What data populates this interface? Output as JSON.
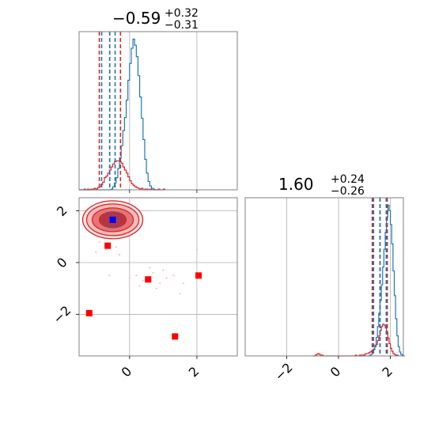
{
  "chart_data": [
    {
      "type": "histogram",
      "panel": "top-left marginal",
      "title_value": "−0.59",
      "title_plus": "+0.32",
      "title_minus": "−0.31",
      "xlim": [
        -1.5,
        3.2
      ],
      "grid": true,
      "series": [
        {
          "color": "#1f77b4",
          "bin_start": -1.5,
          "bin_width": 0.05,
          "counts": [
            0,
            0,
            0,
            0,
            0,
            0,
            0,
            0,
            0,
            0,
            0,
            0,
            0,
            0,
            0,
            0,
            0,
            0,
            0,
            1,
            4,
            9,
            16,
            28,
            42,
            58,
            78,
            95,
            118,
            144,
            166,
            186,
            198,
            190,
            175,
            150,
            122,
            94,
            66,
            40,
            22,
            11,
            5,
            2,
            1,
            0,
            0
          ]
        },
        {
          "color": "#d62728",
          "bin_start": -1.5,
          "bin_width": 0.05,
          "counts": [
            0,
            0,
            0,
            1,
            0,
            1,
            0,
            1,
            1,
            2,
            1,
            3,
            4,
            7,
            10,
            16,
            18,
            22,
            26,
            30,
            34,
            37,
            38,
            38,
            37,
            35,
            30,
            26,
            22,
            17,
            12,
            8,
            6,
            4,
            3,
            2,
            1,
            2,
            0,
            1,
            1,
            0,
            1,
            0,
            0,
            0,
            0,
            1,
            0,
            0,
            1
          ]
        }
      ],
      "quantile_lines": {
        "blue": [
          -0.83,
          -0.59,
          -0.43
        ],
        "red": [
          -0.9,
          -0.59,
          -0.27
        ]
      }
    },
    {
      "type": "contour-scatter",
      "panel": "bottom-left 2D",
      "xlim": [
        -1.5,
        3.2
      ],
      "ylim": [
        -3.6,
        2.5
      ],
      "xticks": [
        "0",
        "2"
      ],
      "yticks": [
        "2",
        "0",
        "−2"
      ],
      "ytick_values": [
        2,
        0,
        -2
      ],
      "xtick_values": [
        0,
        2
      ],
      "grid": true,
      "contour_center": [
        -0.5,
        1.65
      ],
      "red_squares": [
        {
          "x": -0.65,
          "y": 0.65
        },
        {
          "x": 0.55,
          "y": -0.65
        },
        {
          "x": 2.05,
          "y": -0.5
        },
        {
          "x": -1.2,
          "y": -1.95
        },
        {
          "x": 1.35,
          "y": -2.85
        }
      ],
      "blue_square": {
        "x": -0.5,
        "y": 1.65
      },
      "faint_points": [
        [
          0.2,
          -0.5
        ],
        [
          0.4,
          -0.7
        ],
        [
          0.7,
          -0.4
        ],
        [
          0.9,
          -0.8
        ],
        [
          1.1,
          -0.6
        ],
        [
          0.3,
          -0.9
        ],
        [
          0.8,
          -1.0
        ],
        [
          1.3,
          -0.5
        ],
        [
          0.0,
          -0.6
        ],
        [
          1.0,
          -0.3
        ],
        [
          -0.7,
          0.5
        ],
        [
          -0.9,
          0.8
        ],
        [
          -0.4,
          0.6
        ],
        [
          -1.0,
          0.4
        ],
        [
          -0.3,
          0.3
        ],
        [
          2.0,
          0.5
        ],
        [
          1.5,
          -1.2
        ],
        [
          -0.6,
          -0.5
        ],
        [
          0.6,
          -0.2
        ],
        [
          1.6,
          -0.8
        ]
      ]
    },
    {
      "type": "histogram",
      "panel": "bottom-right marginal",
      "title_value": "1.60",
      "title_plus": "+0.24",
      "title_minus": "−0.26",
      "xlim": [
        -3.6,
        2.5
      ],
      "xticks": [
        "−2",
        "0",
        "2"
      ],
      "xtick_values": [
        -2,
        0,
        2
      ],
      "grid": true,
      "series": [
        {
          "color": "#1f77b4",
          "bin_start": 0.8,
          "bin_width": 0.05,
          "counts": [
            0,
            0,
            0,
            0,
            0,
            0,
            0,
            0,
            1,
            2,
            4,
            8,
            14,
            24,
            38,
            55,
            72,
            92,
            115,
            138,
            160,
            180,
            195,
            188,
            170,
            145,
            110,
            78,
            48,
            26,
            12,
            5,
            2,
            1,
            0
          ]
        },
        {
          "color": "#d62728",
          "bin_start": -1.0,
          "bin_width": 0.05,
          "counts": [
            0,
            0,
            1,
            2,
            3,
            2,
            1,
            1,
            0,
            0,
            0,
            0,
            0,
            0,
            0,
            0,
            0,
            0,
            0,
            0,
            0,
            0,
            0,
            0,
            0,
            0,
            0,
            0,
            0,
            0,
            0,
            0,
            0,
            1,
            0,
            0,
            1,
            1,
            1,
            1,
            2,
            3,
            3,
            4,
            5,
            6,
            7,
            9,
            12,
            15,
            20,
            26,
            33,
            38,
            41,
            40,
            36,
            30,
            23,
            16,
            10,
            6,
            3,
            2,
            1,
            1
          ]
        }
      ],
      "quantile_lines": {
        "blue": [
          1.35,
          1.6,
          1.84
        ],
        "red": [
          1.3,
          1.6,
          1.88
        ]
      }
    }
  ]
}
